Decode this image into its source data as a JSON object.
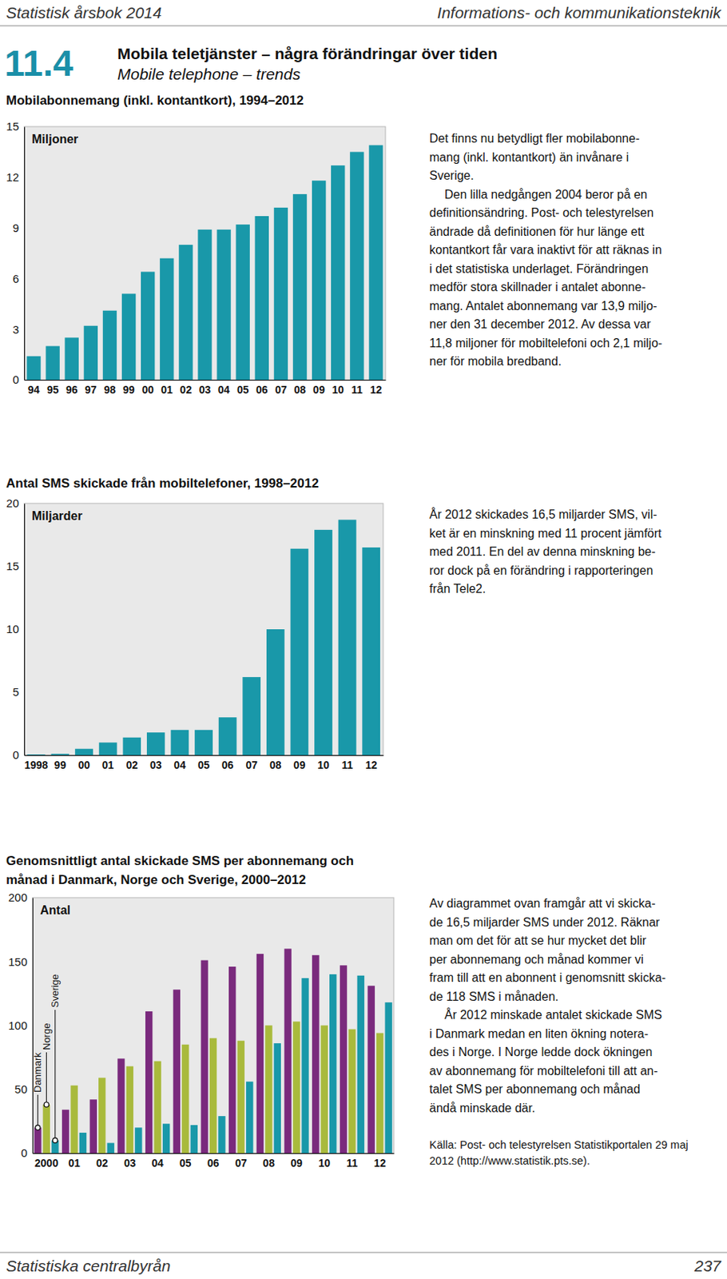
{
  "header": {
    "left": "Statistisk årsbok 2014",
    "right": "Informations- och kommunikationsteknik"
  },
  "section": {
    "number": "11.4",
    "title": "Mobila teletjänster – några förändringar över tiden",
    "subtitle": "Mobile telephone – trends"
  },
  "chart_data": [
    {
      "type": "bar",
      "title": "Mobilabonnemang (inkl. kontantkort), 1994–2012",
      "y_label": "Miljoner",
      "categories": [
        "94",
        "95",
        "96",
        "97",
        "98",
        "99",
        "00",
        "01",
        "02",
        "03",
        "04",
        "05",
        "06",
        "07",
        "08",
        "09",
        "10",
        "11",
        "12"
      ],
      "values": [
        1.4,
        2.0,
        2.5,
        3.2,
        4.1,
        5.1,
        6.4,
        7.2,
        8.0,
        8.9,
        8.9,
        9.2,
        9.7,
        10.2,
        11.0,
        11.8,
        12.7,
        13.5,
        13.9
      ],
      "color": "#1998a9",
      "ylim": [
        0,
        15
      ],
      "yticks": [
        0,
        3,
        6,
        9,
        12,
        15
      ],
      "grid": false
    },
    {
      "type": "bar",
      "title": "Antal SMS skickade från mobiltelefoner, 1998–2012",
      "y_label": "Miljarder",
      "categories": [
        "1998",
        "99",
        "00",
        "01",
        "02",
        "03",
        "04",
        "05",
        "06",
        "07",
        "08",
        "09",
        "10",
        "11",
        "12"
      ],
      "values": [
        0.05,
        0.1,
        0.5,
        1.0,
        1.4,
        1.8,
        2.0,
        2.0,
        3.0,
        6.2,
        10.0,
        16.4,
        17.9,
        18.7,
        16.5
      ],
      "color": "#1998a9",
      "ylim": [
        0,
        20
      ],
      "yticks": [
        0,
        5,
        10,
        15,
        20
      ],
      "grid": false
    },
    {
      "type": "bar",
      "title": [
        "Genomsnittligt antal skickade SMS per abonnemang och",
        "månad i Danmark, Norge och Sverige, 2000–2012"
      ],
      "y_label": "Antal",
      "categories": [
        "2000",
        "01",
        "02",
        "03",
        "04",
        "05",
        "06",
        "07",
        "08",
        "09",
        "10",
        "11",
        "12"
      ],
      "series": [
        {
          "name": "Danmark",
          "color": "#7a2a7d",
          "values": [
            20,
            34,
            42,
            74,
            111,
            128,
            151,
            146,
            156,
            160,
            155,
            147,
            131
          ]
        },
        {
          "name": "Norge",
          "color": "#a9ba3c",
          "values": [
            38,
            53,
            59,
            68,
            72,
            85,
            90,
            88,
            100,
            103,
            100,
            97,
            94
          ]
        },
        {
          "name": "Sverige",
          "color": "#1998a9",
          "values": [
            10,
            16,
            8,
            20,
            23,
            22,
            29,
            56,
            86,
            137,
            140,
            139,
            118
          ]
        }
      ],
      "ylim": [
        0,
        200
      ],
      "yticks": [
        0,
        50,
        100,
        150,
        200
      ],
      "grid": false,
      "legend": "bottom-left"
    }
  ],
  "texts": [
    [
      [
        "Det finns nu betydligt fler mobilabonne-",
        "mang (inkl. kontantkort) än invånare i",
        "Sverige."
      ],
      [
        "Den lilla nedgången 2004 beror på en",
        "definitionsändring. Post- och telestyrelsen",
        "ändrade då definitionen för hur länge ett",
        "kontantkort får vara inaktivt för att räknas in",
        "i det statistiska underlaget. Förändringen",
        "medför stora skillnader i antalet abonne-",
        "mang. Antalet abonnemang var 13,9 miljo-",
        "ner den 31 december 2012. Av dessa var",
        "11,8 miljoner för mobiltelefoni och 2,1 miljo-",
        "ner för mobila bredband."
      ]
    ],
    [
      [
        "År 2012 skickades 16,5 miljarder SMS, vil-",
        "ket är en minskning med 11 procent jämfört",
        "med 2011. En del av denna minskning be-",
        "ror dock på en förändring i rapporteringen",
        "från Tele2."
      ]
    ],
    [
      [
        "Av diagrammet ovan framgår att vi skicka-",
        "de 16,5 miljarder SMS under 2012. Räknar",
        "man om det för att se hur mycket det blir",
        "per abonnemang och månad kommer vi",
        "fram till att en abonnent i genomsnitt skicka-",
        "de 118 SMS i månaden."
      ],
      [
        "År 2012 minskade antalet skickade SMS",
        "i Danmark medan en liten ökning notera-",
        "des i Norge. I Norge ledde dock ökningen",
        "av abonnemang för mobiltelefoni till att an-",
        "talet SMS per abonnemang och månad",
        "ändå minskade där."
      ]
    ]
  ],
  "source": [
    "Källa: Post- och telestyrelsen Statistikportalen 29 maj",
    "2012 (http://www.statistik.pts.se)."
  ],
  "footer": {
    "left": "Statistiska centralbyrån",
    "page": "237"
  }
}
